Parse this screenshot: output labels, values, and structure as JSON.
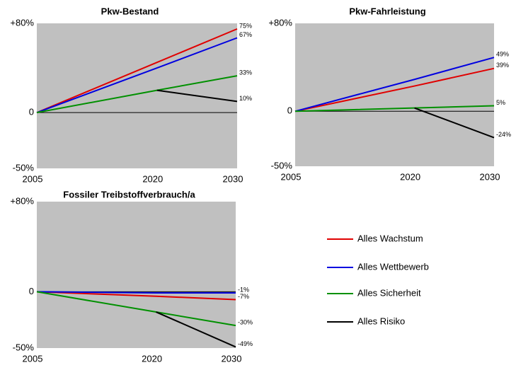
{
  "chart_data": [
    {
      "type": "line",
      "title": "Pkw-Bestand",
      "x": [
        2005,
        2020,
        2030
      ],
      "xlim": [
        2005,
        2030
      ],
      "xticks": [
        2005,
        2020,
        2030
      ],
      "ylim": [
        -50,
        80
      ],
      "yticks": [
        {
          "value": 80,
          "label": "+80%"
        },
        0,
        {
          "value": -50,
          "label": "-50%"
        }
      ],
      "series": [
        {
          "name": "Alles Wachstum",
          "color": "#e00000",
          "values": [
            0,
            45,
            75
          ],
          "value_labels": [
            null,
            null,
            "75%"
          ]
        },
        {
          "name": "Alles Wettbewerb",
          "color": "#0000e0",
          "values": [
            0,
            40,
            67
          ],
          "value_labels": [
            null,
            null,
            "67%"
          ]
        },
        {
          "name": "Alles Sicherheit",
          "color": "#009000",
          "values": [
            0,
            20,
            33
          ],
          "value_labels": [
            null,
            null,
            "33%"
          ]
        },
        {
          "name": "Alles Risiko",
          "color": "#000000",
          "values": [
            null,
            20,
            10
          ],
          "value_labels": [
            null,
            null,
            "10%"
          ]
        }
      ]
    },
    {
      "type": "line",
      "title": "Pkw-Fahrleistung",
      "x": [
        2005,
        2020,
        2030
      ],
      "xlim": [
        2005,
        2030
      ],
      "xticks": [
        2005,
        2020,
        2030
      ],
      "ylim": [
        -50,
        80
      ],
      "yticks": [
        {
          "value": 80,
          "label": "+80%"
        },
        0,
        {
          "value": -50,
          "label": "-50%"
        }
      ],
      "series": [
        {
          "name": "Alles Wachstum",
          "color": "#e00000",
          "values": [
            0,
            23,
            39
          ],
          "value_labels": [
            null,
            null,
            "39%"
          ]
        },
        {
          "name": "Alles Wettbewerb",
          "color": "#0000e0",
          "values": [
            0,
            29,
            49
          ],
          "value_labels": [
            null,
            null,
            "49%"
          ]
        },
        {
          "name": "Alles Sicherheit",
          "color": "#009000",
          "values": [
            0,
            3,
            5
          ],
          "value_labels": [
            null,
            null,
            "5%"
          ]
        },
        {
          "name": "Alles Risiko",
          "color": "#000000",
          "values": [
            null,
            3,
            -24
          ],
          "value_labels": [
            null,
            null,
            "-24%"
          ]
        }
      ]
    },
    {
      "type": "line",
      "title": "Fossiler Treibstoffverbrauch/a",
      "x": [
        2005,
        2020,
        2030
      ],
      "xlim": [
        2005,
        2030
      ],
      "xticks": [
        2005,
        2020,
        2030
      ],
      "ylim": [
        -50,
        80
      ],
      "yticks": [
        {
          "value": 80,
          "label": "+80%"
        },
        0,
        {
          "value": -50,
          "label": "-50%"
        }
      ],
      "series": [
        {
          "name": "Alles Wachstum",
          "color": "#e00000",
          "values": [
            0,
            -4,
            -7
          ],
          "value_labels": [
            null,
            null,
            "-7%"
          ]
        },
        {
          "name": "Alles Wettbewerb",
          "color": "#0000e0",
          "values": [
            0,
            -1,
            -1
          ],
          "value_labels": [
            null,
            null,
            "-1%"
          ]
        },
        {
          "name": "Alles Sicherheit",
          "color": "#009000",
          "values": [
            0,
            -18,
            -30
          ],
          "value_labels": [
            null,
            null,
            "-30%"
          ]
        },
        {
          "name": "Alles Risiko",
          "color": "#000000",
          "values": [
            null,
            -18,
            -49
          ],
          "value_labels": [
            null,
            null,
            "-49%"
          ]
        }
      ]
    }
  ]
}
